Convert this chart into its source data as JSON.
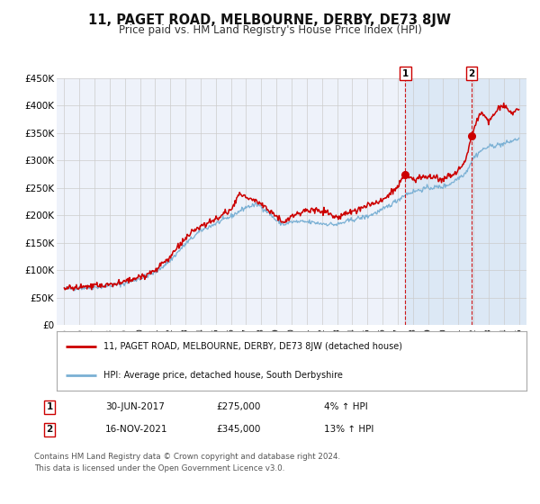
{
  "title": "11, PAGET ROAD, MELBOURNE, DERBY, DE73 8JW",
  "subtitle": "Price paid vs. HM Land Registry's House Price Index (HPI)",
  "title_fontsize": 10.5,
  "subtitle_fontsize": 8.5,
  "bg_color": "#ffffff",
  "plot_bg_color": "#eef2fa",
  "shade_color": "#dce8f5",
  "grid_color": "#cccccc",
  "red_color": "#cc0000",
  "blue_color": "#7ab0d4",
  "legend_label_red": "11, PAGET ROAD, MELBOURNE, DERBY, DE73 8JW (detached house)",
  "legend_label_blue": "HPI: Average price, detached house, South Derbyshire",
  "annotation1_date": "30-JUN-2017",
  "annotation1_price": "£275,000",
  "annotation1_hpi": "4% ↑ HPI",
  "annotation2_date": "16-NOV-2021",
  "annotation2_price": "£345,000",
  "annotation2_hpi": "13% ↑ HPI",
  "footnote1": "Contains HM Land Registry data © Crown copyright and database right 2024.",
  "footnote2": "This data is licensed under the Open Government Licence v3.0.",
  "marker1_x": 2017.5,
  "marker1_y": 275000,
  "marker2_x": 2021.88,
  "marker2_y": 345000,
  "vline1_x": 2017.5,
  "vline2_x": 2021.88,
  "ylim_min": 0,
  "ylim_max": 450000,
  "xlim_min": 1994.5,
  "xlim_max": 2025.5,
  "yticks": [
    0,
    50000,
    100000,
    150000,
    200000,
    250000,
    300000,
    350000,
    400000,
    450000
  ],
  "ytick_labels": [
    "£0",
    "£50K",
    "£100K",
    "£150K",
    "£200K",
    "£250K",
    "£300K",
    "£350K",
    "£400K",
    "£450K"
  ],
  "xtick_years": [
    1995,
    1996,
    1997,
    1998,
    1999,
    2000,
    2001,
    2002,
    2003,
    2004,
    2005,
    2006,
    2007,
    2008,
    2009,
    2010,
    2011,
    2012,
    2013,
    2014,
    2015,
    2016,
    2017,
    2018,
    2019,
    2020,
    2021,
    2022,
    2023,
    2024,
    2025
  ]
}
